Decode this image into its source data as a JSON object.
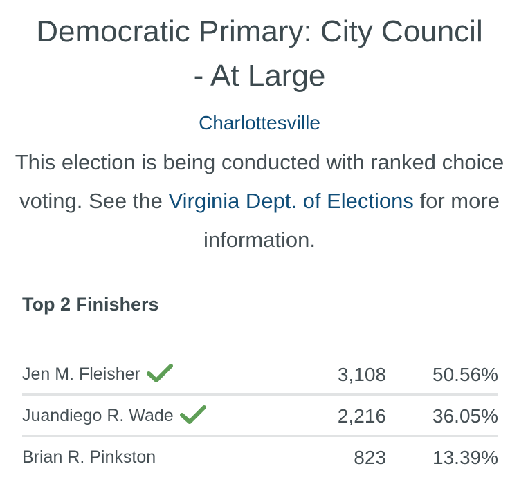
{
  "race": {
    "title": "Democratic Primary: City Council - At Large",
    "locality": "Charlottesville",
    "description_before_link": "This election is being conducted with ranked choice voting. See the ",
    "link_text": "Virginia Dept. of Elections",
    "description_after_link": " for more information."
  },
  "results": {
    "heading": "Top 2 Finishers",
    "rows": [
      {
        "name": "Jen M. Fleisher",
        "votes": "3,108",
        "percent": "50.56%",
        "winner_icon": "checkmark-icon"
      },
      {
        "name": "Juandiego R. Wade",
        "votes": "2,216",
        "percent": "36.05%",
        "winner_icon": "checkmark-icon"
      },
      {
        "name": "Brian R. Pinkston",
        "votes": "823",
        "percent": "13.39%"
      }
    ]
  },
  "colors": {
    "text": "#3d4a4f",
    "link": "#0f4d78",
    "winner_check": "#5e9e56",
    "divider": "#e1e3e4"
  }
}
